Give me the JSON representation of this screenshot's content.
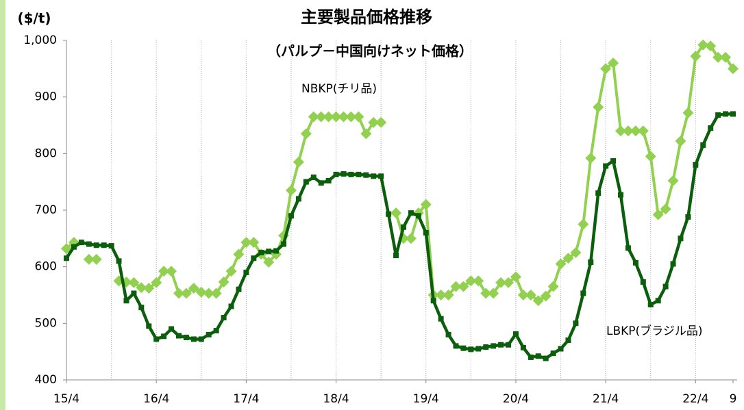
{
  "chart_data": {
    "type": "line",
    "title": "主要製品価格推移",
    "subtitle": "（パルプ－中国向けネット価格）",
    "y_label": "($/t)",
    "annotations": [
      "NBKP(チリ品)",
      "LBKP(ブラジル品)"
    ],
    "categories": [
      "15/4",
      null,
      null,
      null,
      null,
      null,
      null,
      null,
      null,
      null,
      null,
      null,
      "16/4",
      null,
      null,
      null,
      null,
      null,
      null,
      null,
      null,
      null,
      null,
      null,
      "17/4",
      null,
      null,
      null,
      null,
      null,
      null,
      null,
      null,
      null,
      null,
      null,
      "18/4",
      null,
      null,
      null,
      null,
      null,
      null,
      null,
      null,
      null,
      null,
      null,
      "19/4",
      null,
      null,
      null,
      null,
      null,
      null,
      null,
      null,
      null,
      null,
      null,
      "20/4",
      null,
      null,
      null,
      null,
      null,
      null,
      null,
      null,
      null,
      null,
      null,
      "21/4",
      null,
      null,
      null,
      null,
      null,
      null,
      null,
      null,
      null,
      null,
      null,
      "22/4",
      null,
      null,
      null,
      null,
      "9"
    ],
    "series": [
      {
        "name": "NBKP",
        "color": "#92d050",
        "marker": "diamond",
        "values": [
          632,
          643,
          null,
          613,
          613,
          null,
          null,
          575,
          573,
          572,
          563,
          562,
          572,
          592,
          592,
          553,
          553,
          562,
          555,
          553,
          553,
          573,
          592,
          622,
          643,
          643,
          622,
          608,
          622,
          655,
          735,
          785,
          835,
          865,
          865,
          865,
          865,
          865,
          865,
          865,
          835,
          855,
          855,
          null,
          695,
          650,
          650,
          695,
          710,
          550,
          550,
          550,
          565,
          565,
          575,
          575,
          553,
          553,
          572,
          572,
          582,
          550,
          550,
          540,
          548,
          565,
          605,
          615,
          625,
          675,
          792,
          882,
          950,
          960,
          840,
          840,
          840,
          840,
          795,
          692,
          702,
          752,
          822,
          872,
          972,
          992,
          990,
          970,
          970,
          950
        ]
      },
      {
        "name": "LBKP",
        "color": "#0b5e0b",
        "marker": "square",
        "values": [
          615,
          635,
          643,
          640,
          638,
          638,
          637,
          610,
          540,
          553,
          528,
          495,
          472,
          477,
          490,
          478,
          475,
          472,
          472,
          480,
          487,
          510,
          530,
          560,
          590,
          615,
          625,
          627,
          628,
          640,
          690,
          720,
          750,
          758,
          748,
          752,
          763,
          764,
          763,
          763,
          762,
          760,
          760,
          693,
          620,
          670,
          695,
          690,
          660,
          540,
          508,
          480,
          460,
          456,
          454,
          455,
          458,
          460,
          462,
          462,
          481,
          457,
          440,
          442,
          438,
          447,
          455,
          470,
          500,
          553,
          608,
          730,
          778,
          787,
          727,
          633,
          607,
          573,
          533,
          540,
          565,
          605,
          650,
          688,
          780,
          815,
          845,
          868,
          870,
          870
        ]
      }
    ],
    "ylim": [
      400,
      1000
    ],
    "yticks": [
      400,
      500,
      600,
      700,
      800,
      900,
      {
        "value": 1000,
        "label": "1,000"
      }
    ],
    "grid": false
  }
}
